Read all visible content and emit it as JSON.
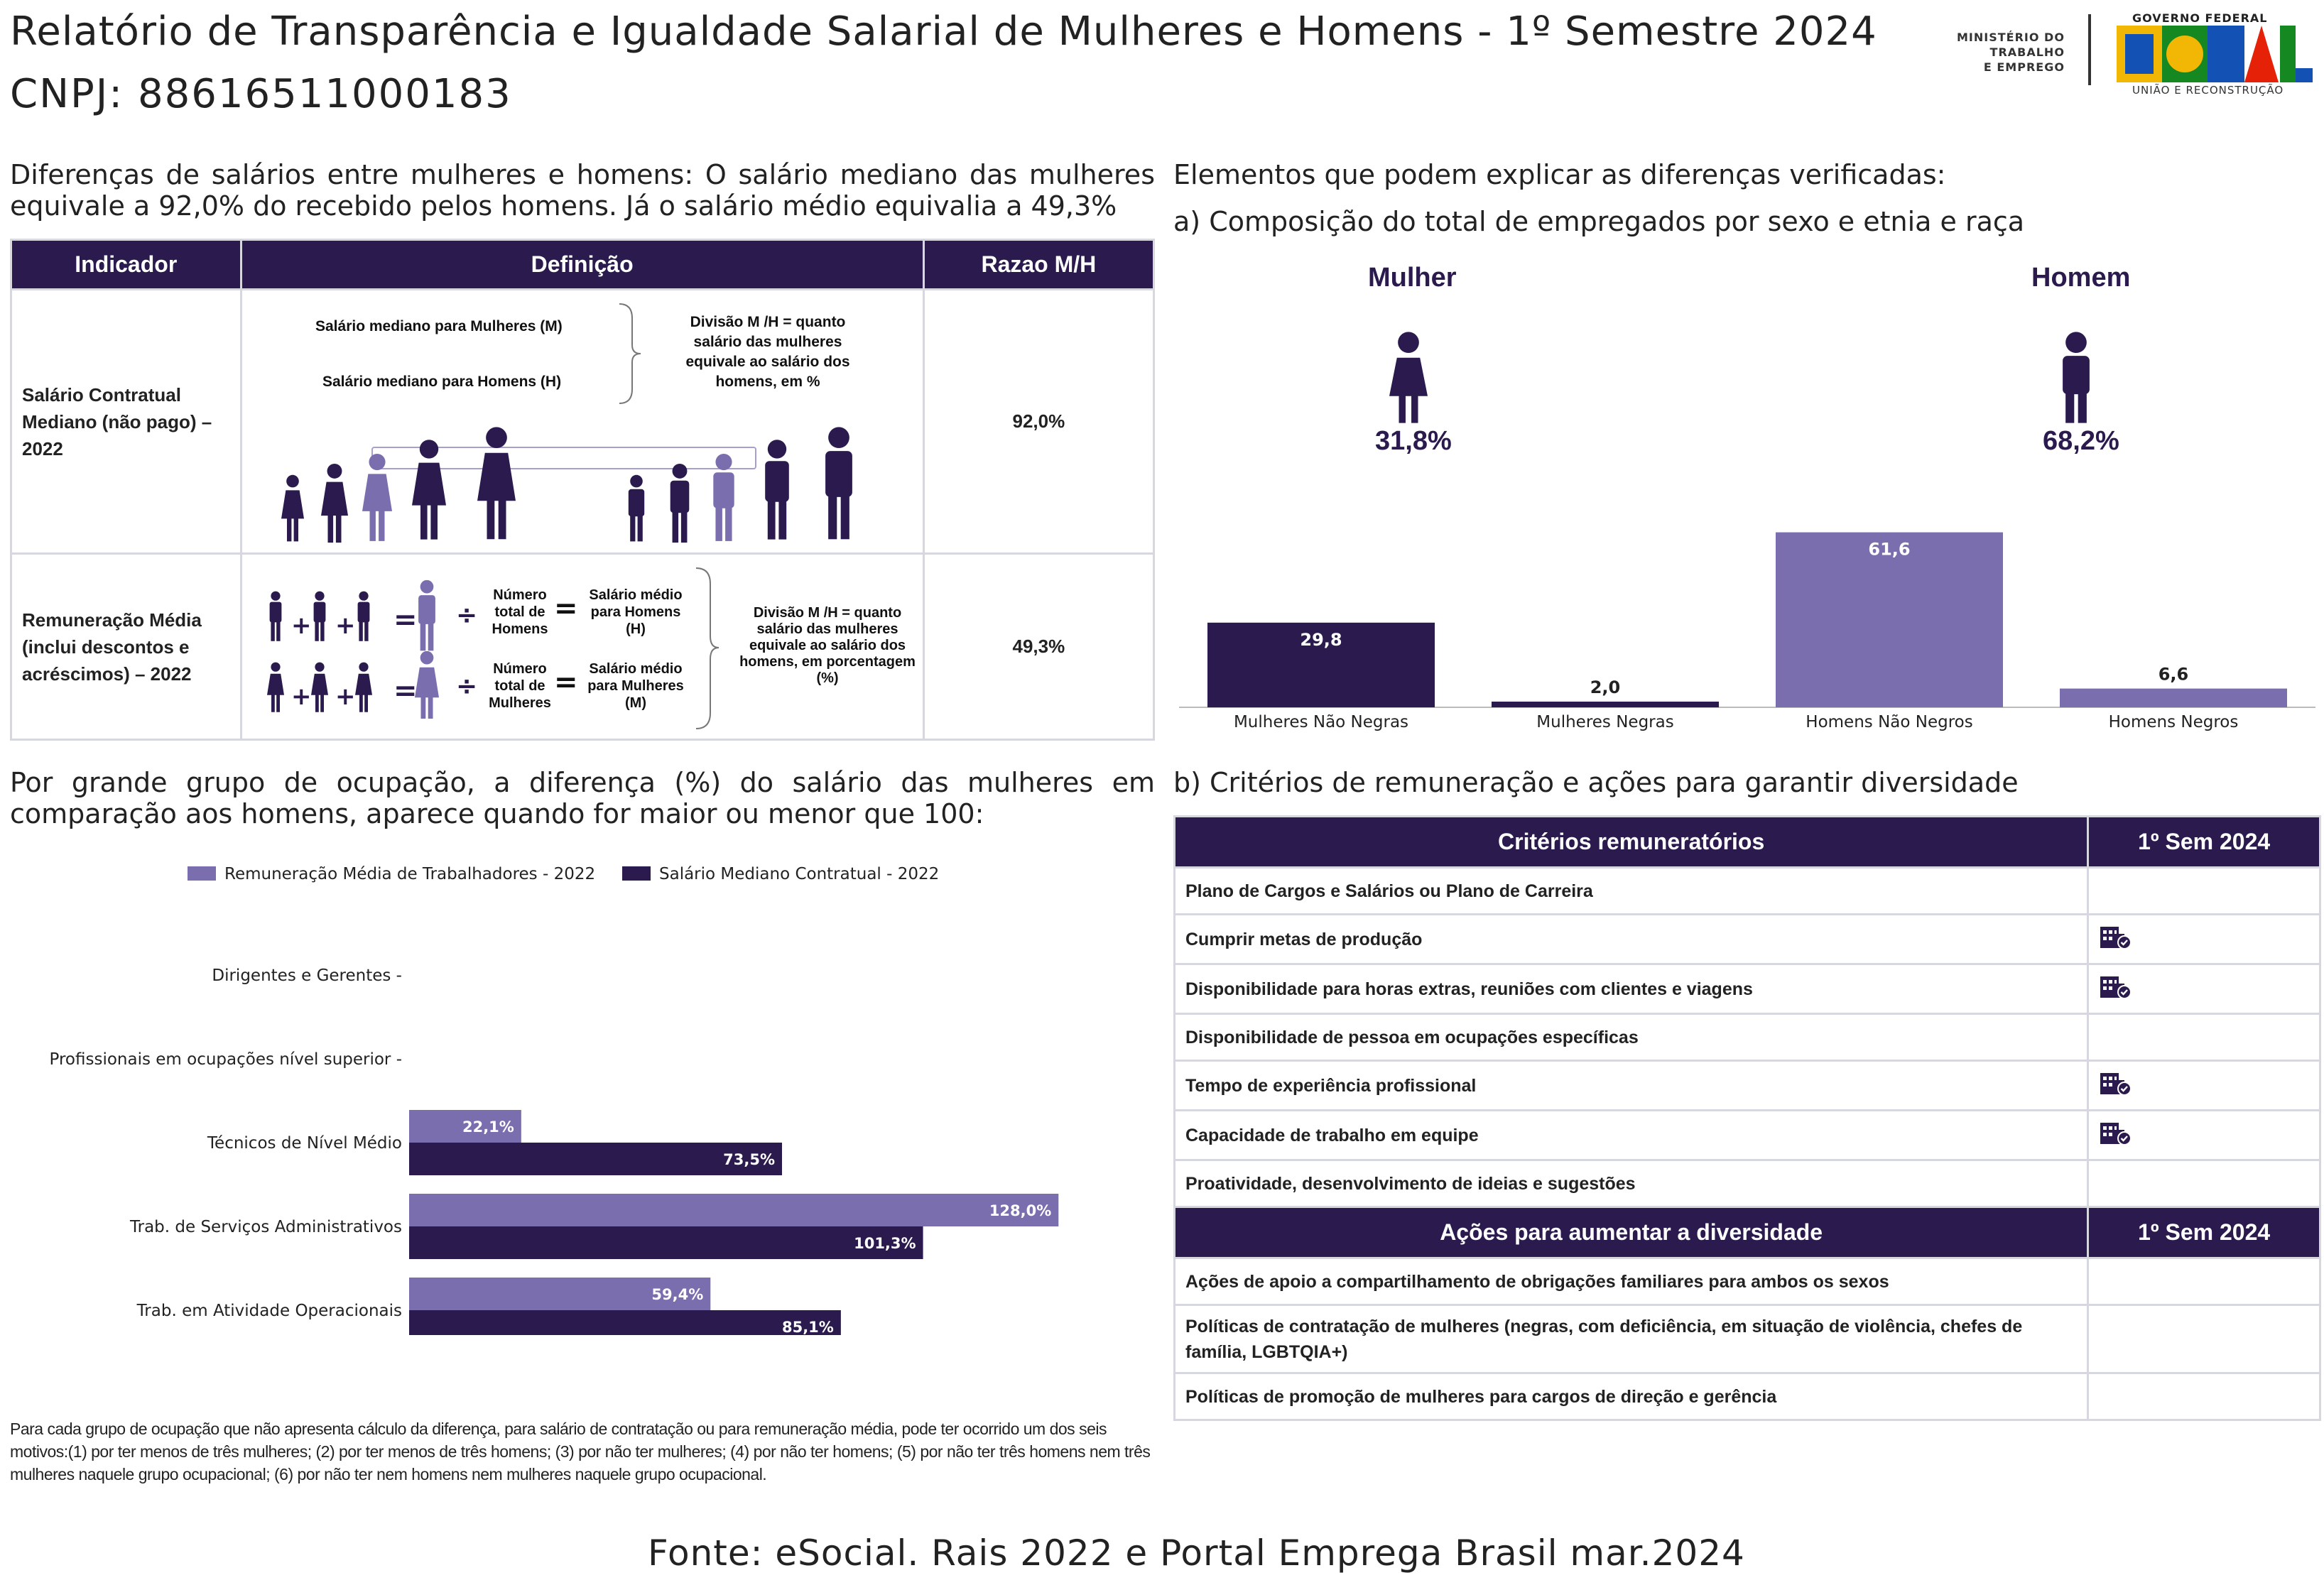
{
  "header": {
    "title": "Relatório de Transparência e Igualdade Salarial de Mulheres e Homens - 1º Semestre 2024",
    "cnpj": "CNPJ: 88616511000183",
    "logo_ministry": [
      "MINISTÉRIO DO",
      "TRABALHO",
      "E EMPREGO"
    ],
    "logo_gov_top": "GOVERNO FEDERAL",
    "logo_gov_word": "BRASIL",
    "logo_gov_bottom": "UNIÃO E RECONSTRUÇÃO"
  },
  "salary_diff": {
    "intro": "Diferenças de salários entre mulheres e homens: O salário mediano das mulheres equivale a 92,0% do recebido pelos homens. Já o salário médio equivalia a 49,3%",
    "table": {
      "headers": [
        "Indicador",
        "Definição",
        "Razao M/H"
      ],
      "rows": [
        {
          "indicator": "Salário Contratual Mediano (não pago) – 2022",
          "ratio": "92,0%",
          "def_women": "Salário mediano para Mulheres (M)",
          "def_men": "Salário mediano para Homens (H)",
          "def_division": "Divisão M /H = quanto salário das mulheres equivale ao salário dos homens, em %"
        },
        {
          "indicator": "Remuneração Média (inclui descontos e acréscimos) – 2022",
          "ratio": "49,3%",
          "men_total": "Número total de Homens",
          "men_avg": "Salário médio para Homens (H)",
          "women_total": "Número total de Mulheres",
          "women_avg": "Salário médio para Mulheres (M)",
          "def_division": "Divisão M /H = quanto salário das mulheres equivale ao salário dos homens, em porcentagem (%)"
        }
      ]
    }
  },
  "composition": {
    "title": "Elementos que podem explicar as diferenças verificadas:",
    "subtitle": "a) Composição do total de empregados por sexo e etnia e raça",
    "women_label": "Mulher",
    "women_pct": "31,8%",
    "men_label": "Homem",
    "men_pct": "68,2%",
    "colors": {
      "dark": "#2b1a4e",
      "light": "#7a6eaf"
    }
  },
  "occupation": {
    "intro": "Por grande grupo de ocupação, a diferença (%) do salário das mulheres em comparação aos homens, aparece quando for maior ou menor que 100:",
    "footnote": "Para cada grupo de ocupação que não apresenta cálculo da diferença, para salário de contratação ou para remuneração média, pode ter ocorrido um dos seis motivos:(1) por ter menos de três mulheres; (2) por ter menos de três homens; (3) por não ter mulheres; (4) por não ter homens; (5) por não ter três homens nem três mulheres naquele grupo ocupacional; (6) por não ter nem homens nem mulheres naquele grupo ocupacional."
  },
  "criteria": {
    "title": "b) Critérios de remuneração e ações para garantir diversidade",
    "header_criteria": "Critérios remuneratórios",
    "header_period": "1º Sem 2024",
    "items": [
      {
        "label": "Plano de Cargos e Salários ou Plano de Carreira",
        "checked": false
      },
      {
        "label": "Cumprir metas de produção",
        "checked": true
      },
      {
        "label": "Disponibilidade para horas extras, reuniões com clientes e viagens",
        "checked": true
      },
      {
        "label": "Disponibilidade de pessoa em ocupações específicas",
        "checked": false
      },
      {
        "label": "Tempo de experiência profissional",
        "checked": true
      },
      {
        "label": "Capacidade de trabalho em equipe",
        "checked": true
      },
      {
        "label": "Proatividade, desenvolvimento de ideias e sugestões",
        "checked": false
      }
    ],
    "header_actions": "Ações para aumentar a diversidade",
    "header_period2": "1º Sem 2024",
    "actions": [
      {
        "label": "Ações de apoio a compartilhamento de obrigações familiares para ambos os sexos",
        "checked": false
      },
      {
        "label": "Políticas de contratação de mulheres (negras, com deficiência, em situação de violência, chefes de família, LGBTQIA+)",
        "checked": false
      },
      {
        "label": "Políticas de promoção de mulheres para cargos de direção e gerência",
        "checked": false
      }
    ]
  },
  "source": "Fonte: eSocial. Rais 2022 e Portal Emprega Brasil mar.2024",
  "chart_data": [
    {
      "type": "bar",
      "categories": [
        "Mulheres Não Negras",
        "Mulheres Negras",
        "Homens Não Negros",
        "Homens Negros"
      ],
      "values": [
        29.8,
        2.0,
        61.6,
        6.6
      ],
      "value_labels": [
        "29,8",
        "2,0",
        "61,6",
        "6,6"
      ],
      "colors": [
        "#2b1a4e",
        "#2b1a4e",
        "#7a6eaf",
        "#7a6eaf"
      ],
      "ylim": [
        0,
        70
      ],
      "grid": false
    },
    {
      "type": "bar",
      "orientation": "horizontal",
      "categories": [
        "Dirigentes e Gerentes",
        "Profissionais em ocupações nível superior",
        "Técnicos de Nível Médio",
        "Trab. de Serviços Administrativos",
        "Trab. em Atividade Operacionais"
      ],
      "series": [
        {
          "name": "Remuneração Média de Trabalhadores - 2022",
          "color": "#7a6eaf",
          "values": [
            null,
            null,
            22.1,
            128.0,
            59.4
          ],
          "labels": [
            "",
            "",
            "22,1%",
            "128,0%",
            "59,4%"
          ]
        },
        {
          "name": "Salário Mediano Contratual - 2022",
          "color": "#2b1a4e",
          "values": [
            null,
            null,
            73.5,
            101.3,
            85.1
          ],
          "labels": [
            "",
            "",
            "73,5%",
            "101,3%",
            "85,1%"
          ]
        }
      ],
      "xlim": [
        0,
        140
      ],
      "legend": "top",
      "grid": false
    }
  ]
}
